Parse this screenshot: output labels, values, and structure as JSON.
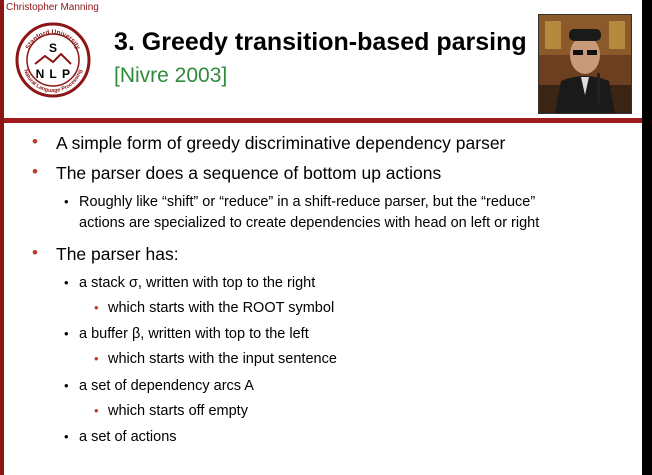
{
  "header": {
    "presenter": "Christopher Manning",
    "title": "3. Greedy transition-based parsing",
    "subtitle": "[Nivre 2003]",
    "logo_text": [
      "Stanford University",
      "Natural Language Processing",
      "S",
      "N",
      "L",
      "P"
    ]
  },
  "bullets": [
    {
      "text": "A simple form of greedy discriminative dependency parser"
    },
    {
      "text": "The parser does a sequence of bottom up actions"
    },
    {
      "text": "Roughly like “shift” or “reduce” in a shift-reduce parser, but the “reduce”"
    },
    {
      "text": "actions are specialized to create dependencies with head on left or right"
    },
    {
      "text": "The parser has:"
    },
    {
      "text": "a stack σ, written with top to the right"
    },
    {
      "text": "which starts with the ROOT symbol"
    },
    {
      "text": "a buffer β, written with top to the left"
    },
    {
      "text": "which starts with the input sentence"
    },
    {
      "text": "a set of dependency arcs A"
    },
    {
      "text": "which starts off empty"
    },
    {
      "text": "a set of actions"
    }
  ],
  "colors": {
    "accent": "#8c1515",
    "subtitle": "#2e8b3a",
    "bullet_red": "#c0392b"
  }
}
